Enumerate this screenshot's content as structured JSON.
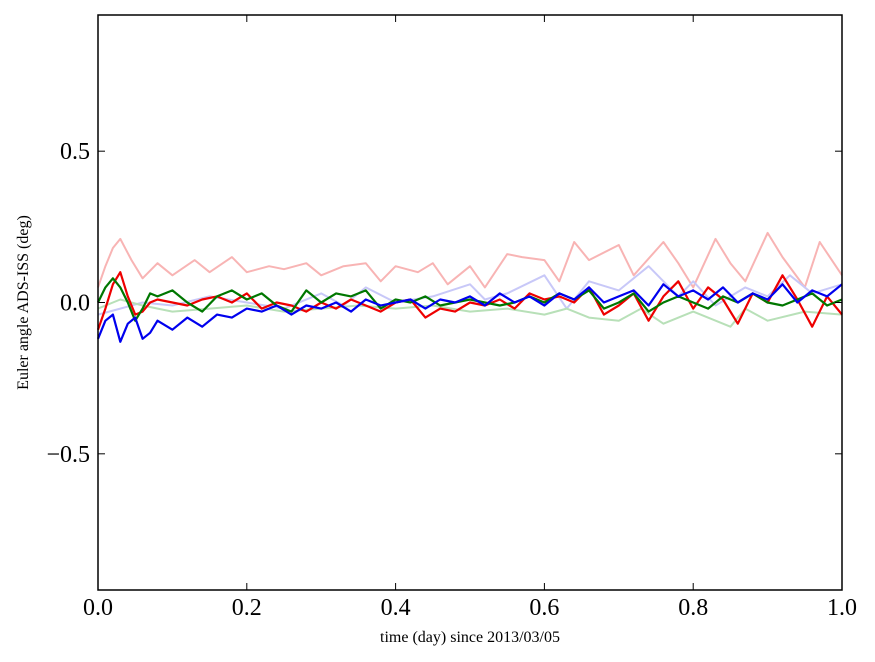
{
  "chart_data": {
    "type": "line",
    "title": "",
    "xlabel": "time (day) since 2013/03/05",
    "ylabel": "Euler angle ADS-ISS (deg)",
    "xlim": [
      0.0,
      1.0
    ],
    "ylim": [
      -0.95,
      0.95
    ],
    "xticks": [
      0.0,
      0.2,
      0.4,
      0.6,
      0.8,
      1.0
    ],
    "xtick_labels": [
      "0.0",
      "0.2",
      "0.4",
      "0.6",
      "0.8",
      "1.0"
    ],
    "yticks": [
      -0.5,
      0.0,
      0.5
    ],
    "ytick_labels": [
      "−0.5",
      "0.0",
      "0.5"
    ],
    "grid": false,
    "legend": "none",
    "series": [
      {
        "color": "#f8b4b4",
        "x": [
          0.0,
          0.01,
          0.02,
          0.03,
          0.045,
          0.06,
          0.08,
          0.1,
          0.13,
          0.15,
          0.18,
          0.2,
          0.23,
          0.25,
          0.28,
          0.3,
          0.33,
          0.36,
          0.38,
          0.4,
          0.43,
          0.45,
          0.47,
          0.5,
          0.52,
          0.55,
          0.57,
          0.6,
          0.62,
          0.64,
          0.66,
          0.7,
          0.72,
          0.76,
          0.78,
          0.8,
          0.83,
          0.85,
          0.87,
          0.9,
          0.92,
          0.95,
          0.97,
          1.0
        ],
        "y": [
          0.05,
          0.12,
          0.18,
          0.21,
          0.14,
          0.08,
          0.13,
          0.09,
          0.14,
          0.1,
          0.15,
          0.1,
          0.12,
          0.11,
          0.13,
          0.09,
          0.12,
          0.13,
          0.07,
          0.12,
          0.1,
          0.13,
          0.06,
          0.12,
          0.05,
          0.16,
          0.15,
          0.14,
          0.07,
          0.2,
          0.14,
          0.19,
          0.09,
          0.2,
          0.13,
          0.05,
          0.21,
          0.13,
          0.07,
          0.23,
          0.15,
          0.05,
          0.2,
          0.09
        ]
      },
      {
        "color": "#c8c8f8",
        "x": [
          0.0,
          0.03,
          0.06,
          0.1,
          0.15,
          0.2,
          0.25,
          0.3,
          0.33,
          0.36,
          0.4,
          0.45,
          0.5,
          0.52,
          0.55,
          0.6,
          0.63,
          0.66,
          0.7,
          0.74,
          0.78,
          0.8,
          0.83,
          0.87,
          0.9,
          0.93,
          0.96,
          1.0
        ],
        "y": [
          -0.04,
          -0.02,
          0.0,
          -0.01,
          0.02,
          0.0,
          -0.02,
          0.03,
          -0.01,
          0.05,
          0.0,
          0.02,
          0.06,
          0.01,
          0.03,
          0.09,
          -0.02,
          0.07,
          0.04,
          0.12,
          0.02,
          0.07,
          -0.01,
          0.05,
          0.02,
          0.09,
          0.03,
          0.06
        ]
      },
      {
        "color": "#b8e0b8",
        "x": [
          0.0,
          0.03,
          0.06,
          0.1,
          0.15,
          0.2,
          0.25,
          0.3,
          0.35,
          0.4,
          0.45,
          0.5,
          0.55,
          0.6,
          0.63,
          0.66,
          0.7,
          0.73,
          0.76,
          0.8,
          0.85,
          0.87,
          0.9,
          0.95,
          1.0
        ],
        "y": [
          -0.02,
          0.01,
          -0.01,
          -0.03,
          -0.02,
          -0.01,
          -0.03,
          -0.02,
          -0.01,
          -0.02,
          -0.01,
          -0.03,
          -0.02,
          -0.04,
          -0.02,
          -0.05,
          -0.06,
          -0.02,
          -0.07,
          -0.03,
          -0.08,
          -0.02,
          -0.06,
          -0.03,
          -0.04
        ]
      },
      {
        "color": "#ee0000",
        "x": [
          0.0,
          0.01,
          0.02,
          0.03,
          0.04,
          0.05,
          0.06,
          0.07,
          0.08,
          0.1,
          0.12,
          0.14,
          0.16,
          0.18,
          0.2,
          0.22,
          0.24,
          0.26,
          0.28,
          0.3,
          0.32,
          0.34,
          0.36,
          0.38,
          0.4,
          0.42,
          0.44,
          0.46,
          0.48,
          0.5,
          0.52,
          0.54,
          0.56,
          0.58,
          0.6,
          0.62,
          0.64,
          0.66,
          0.68,
          0.7,
          0.72,
          0.74,
          0.76,
          0.78,
          0.8,
          0.82,
          0.84,
          0.86,
          0.88,
          0.9,
          0.92,
          0.94,
          0.96,
          0.98,
          1.0
        ],
        "y": [
          -0.09,
          -0.02,
          0.06,
          0.1,
          0.02,
          -0.04,
          -0.03,
          0.0,
          0.01,
          0.0,
          -0.01,
          0.01,
          0.02,
          0.0,
          0.03,
          -0.02,
          0.0,
          -0.01,
          -0.03,
          0.0,
          -0.02,
          0.01,
          -0.01,
          -0.03,
          0.0,
          0.01,
          -0.05,
          -0.02,
          -0.03,
          0.0,
          -0.01,
          0.01,
          -0.02,
          0.03,
          0.01,
          0.02,
          0.0,
          0.05,
          -0.04,
          -0.01,
          0.03,
          -0.06,
          0.02,
          0.07,
          -0.02,
          0.05,
          0.01,
          -0.07,
          0.03,
          0.0,
          0.09,
          0.01,
          -0.08,
          0.02,
          -0.04
        ]
      },
      {
        "color": "#007700",
        "x": [
          0.0,
          0.01,
          0.02,
          0.03,
          0.04,
          0.05,
          0.06,
          0.07,
          0.08,
          0.1,
          0.12,
          0.14,
          0.16,
          0.18,
          0.2,
          0.22,
          0.24,
          0.26,
          0.28,
          0.3,
          0.32,
          0.34,
          0.36,
          0.38,
          0.4,
          0.42,
          0.44,
          0.46,
          0.48,
          0.5,
          0.52,
          0.54,
          0.56,
          0.58,
          0.6,
          0.62,
          0.64,
          0.66,
          0.68,
          0.7,
          0.72,
          0.74,
          0.76,
          0.78,
          0.8,
          0.82,
          0.84,
          0.86,
          0.88,
          0.9,
          0.92,
          0.94,
          0.96,
          0.98,
          1.0
        ],
        "y": [
          0.0,
          0.05,
          0.08,
          0.05,
          0.0,
          -0.06,
          -0.02,
          0.03,
          0.02,
          0.04,
          0.0,
          -0.03,
          0.02,
          0.04,
          0.01,
          0.03,
          -0.01,
          -0.03,
          0.04,
          0.0,
          0.03,
          0.02,
          0.04,
          -0.02,
          0.01,
          0.0,
          0.02,
          -0.01,
          0.0,
          0.01,
          0.0,
          -0.01,
          0.0,
          0.02,
          0.0,
          0.03,
          0.01,
          0.04,
          -0.02,
          0.0,
          0.03,
          -0.03,
          0.0,
          0.02,
          0.0,
          -0.02,
          0.02,
          0.0,
          0.03,
          0.0,
          -0.01,
          0.01,
          0.03,
          -0.01,
          0.01
        ]
      },
      {
        "color": "#0000ee",
        "x": [
          0.0,
          0.01,
          0.02,
          0.03,
          0.04,
          0.05,
          0.06,
          0.07,
          0.08,
          0.1,
          0.12,
          0.14,
          0.16,
          0.18,
          0.2,
          0.22,
          0.24,
          0.26,
          0.28,
          0.3,
          0.32,
          0.34,
          0.36,
          0.38,
          0.4,
          0.42,
          0.44,
          0.46,
          0.48,
          0.5,
          0.52,
          0.54,
          0.56,
          0.58,
          0.6,
          0.62,
          0.64,
          0.66,
          0.68,
          0.7,
          0.72,
          0.74,
          0.76,
          0.78,
          0.8,
          0.82,
          0.84,
          0.86,
          0.88,
          0.9,
          0.92,
          0.94,
          0.96,
          0.98,
          1.0
        ],
        "y": [
          -0.12,
          -0.06,
          -0.04,
          -0.13,
          -0.07,
          -0.05,
          -0.12,
          -0.1,
          -0.06,
          -0.09,
          -0.05,
          -0.08,
          -0.04,
          -0.05,
          -0.02,
          -0.03,
          -0.01,
          -0.04,
          -0.01,
          -0.02,
          0.0,
          -0.03,
          0.01,
          -0.01,
          0.0,
          0.01,
          -0.02,
          0.01,
          0.0,
          0.02,
          -0.01,
          0.03,
          0.0,
          0.02,
          -0.01,
          0.03,
          0.01,
          0.05,
          0.0,
          0.02,
          0.04,
          -0.01,
          0.06,
          0.02,
          0.04,
          0.01,
          0.05,
          0.0,
          0.03,
          0.01,
          0.06,
          0.0,
          0.04,
          0.02,
          0.06
        ]
      }
    ]
  }
}
